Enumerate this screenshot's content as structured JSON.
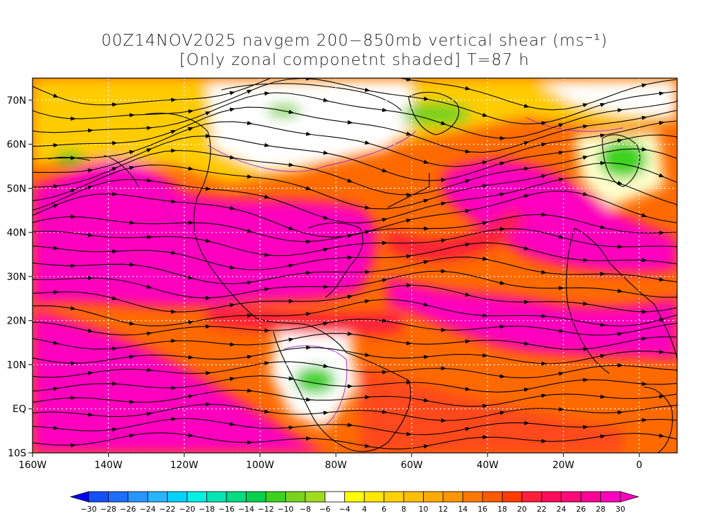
{
  "title": {
    "line1": "00Z14NOV2025 navgem 200−850mb vertical shear (ms⁻¹)",
    "line2": "[Only zonal componetnt shaded] T=87 h"
  },
  "map": {
    "projection": "lat-lon",
    "lon_range": [
      -160,
      10
    ],
    "lat_range": [
      -10,
      75
    ],
    "lon_ticks": [
      {
        "value": -160,
        "label": "160W"
      },
      {
        "value": -140,
        "label": "140W"
      },
      {
        "value": -120,
        "label": "120W"
      },
      {
        "value": -100,
        "label": "100W"
      },
      {
        "value": -80,
        "label": "80W"
      },
      {
        "value": -60,
        "label": "60W"
      },
      {
        "value": -40,
        "label": "40W"
      },
      {
        "value": -20,
        "label": "20W"
      },
      {
        "value": 0,
        "label": "0"
      }
    ],
    "lat_ticks": [
      {
        "value": 70,
        "label": "70N"
      },
      {
        "value": 60,
        "label": "60N"
      },
      {
        "value": 50,
        "label": "50N"
      },
      {
        "value": 40,
        "label": "40N"
      },
      {
        "value": 30,
        "label": "30N"
      },
      {
        "value": 20,
        "label": "20N"
      },
      {
        "value": 10,
        "label": "10N"
      },
      {
        "value": 0,
        "label": "EQ"
      },
      {
        "value": -10,
        "label": "10S"
      }
    ],
    "grid": "dotted-white"
  },
  "colorbar": {
    "levels": [
      -30,
      -28,
      -26,
      -24,
      -22,
      -20,
      -18,
      -16,
      -14,
      -12,
      -10,
      -8,
      -6,
      -4,
      4,
      6,
      8,
      10,
      12,
      14,
      16,
      18,
      20,
      22,
      24,
      26,
      28,
      30
    ],
    "labels": [
      "−30",
      "−28",
      "−26",
      "−24",
      "−22",
      "−20",
      "−18",
      "−16",
      "−14",
      "−12",
      "−10",
      "−8",
      "−6",
      "−4",
      "4",
      "6",
      "8",
      "10",
      "12",
      "14",
      "16",
      "18",
      "20",
      "22",
      "24",
      "26",
      "28",
      "30"
    ],
    "colors": [
      "#0000ff",
      "#1450ff",
      "#1e6eff",
      "#2896ff",
      "#28b4ff",
      "#00d2ff",
      "#00f0e6",
      "#00e6b4",
      "#00dc82",
      "#00d250",
      "#3cd21e",
      "#78d21e",
      "#a0dc1e",
      "#ffffff",
      "#ffff00",
      "#ffe600",
      "#ffd200",
      "#ffbe00",
      "#ffaa00",
      "#ff9600",
      "#ff7800",
      "#ff5a00",
      "#ff3c00",
      "#ff1e3c",
      "#ff0a5a",
      "#ff0a78",
      "#ff0096",
      "#ff00be"
    ],
    "over_color": "#ff00be",
    "under_color": "#0000ff"
  }
}
